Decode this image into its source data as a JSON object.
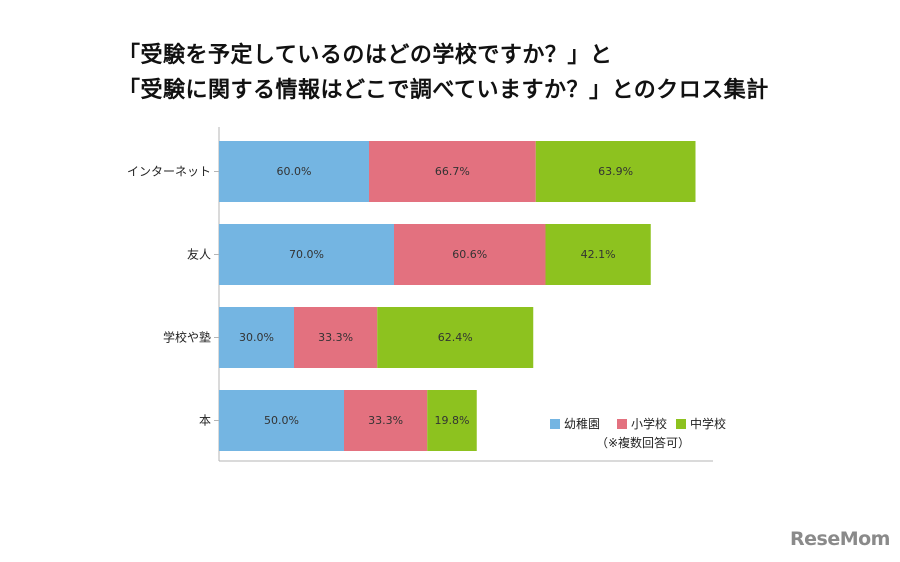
{
  "chart_data": {
    "type": "bar",
    "orientation": "horizontal",
    "stacked": true,
    "title_lines": [
      "「受験を予定しているのはどの学校ですか？」と",
      "「受験に関する情報はどこで調べていますか？」とのクロス集計"
    ],
    "categories": [
      "インターネット",
      "友人",
      "学校や塾",
      "本"
    ],
    "series": [
      {
        "name": "幼稚園",
        "color": "#74b5e2",
        "values": [
          60.0,
          70.0,
          30.0,
          50.0
        ],
        "labels": [
          "60.0%",
          "70.0%",
          "30.0%",
          "50.0%"
        ]
      },
      {
        "name": "小学校",
        "color": "#e3717f",
        "values": [
          66.7,
          60.6,
          33.3,
          33.3
        ],
        "labels": [
          "66.7%",
          "60.6%",
          "33.3%",
          "33.3%"
        ]
      },
      {
        "name": "中学校",
        "color": "#8dc21f",
        "values": [
          63.9,
          42.1,
          62.4,
          19.8
        ],
        "labels": [
          "63.9%",
          "42.1%",
          "62.4%",
          "19.8%"
        ]
      }
    ],
    "legend_position": "bottom-right",
    "note": "（※複数回答可）",
    "grid": false
  },
  "watermark": "ReseMom"
}
